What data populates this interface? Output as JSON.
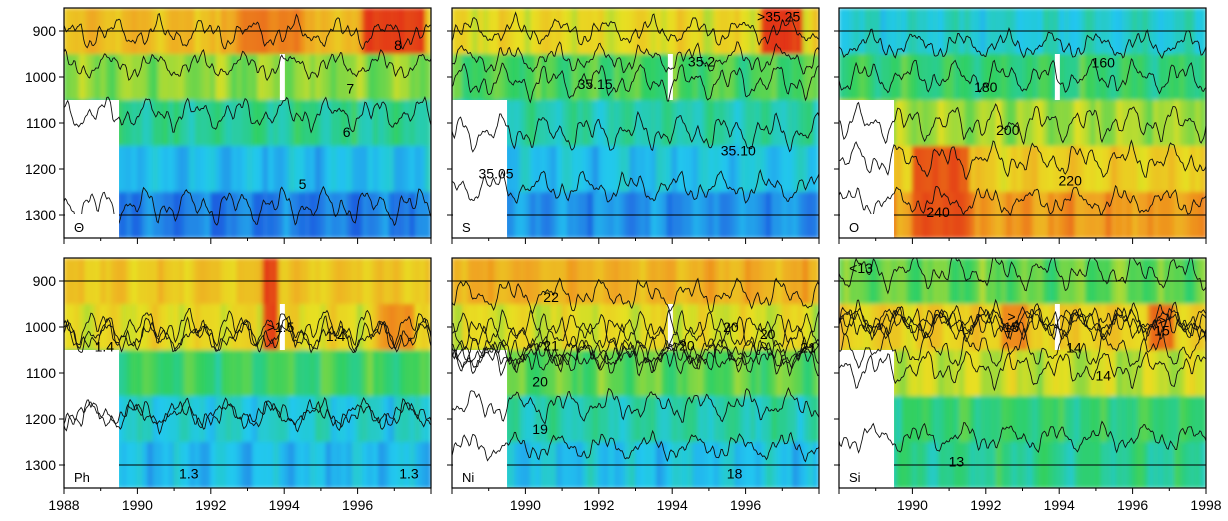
{
  "chart_data": {
    "type": "heatmap",
    "y_axis": {
      "ticks": [
        900,
        1000,
        1100,
        1200,
        1300
      ],
      "ylim": [
        1350,
        850
      ],
      "reversed": true,
      "labeled_columns": [
        0
      ]
    },
    "x_axis": {
      "xlim": [
        1988,
        1998
      ],
      "ticks_col0": [
        "1988",
        "1990",
        "1992",
        "1994",
        "1996"
      ],
      "ticks_col1": [
        "1990",
        "1992",
        "1994",
        "1996"
      ],
      "ticks_col2": [
        "1990",
        "1992",
        "1994",
        "1996",
        "1998"
      ],
      "labeled_row": 1
    },
    "reference_lines_y": [
      900,
      1300
    ],
    "data_gap": {
      "x": 1993.95,
      "ylim": [
        950,
        1050
      ]
    },
    "colormap": [
      "#1f5fe0",
      "#22c8f0",
      "#30d060",
      "#e8e020",
      "#f0a020",
      "#e02010"
    ],
    "panels": [
      {
        "tag": "Θ",
        "row": 0,
        "col": 0,
        "data_start_below": 1050,
        "data_start_x": 1989.5,
        "bands": [
          {
            "y": [
              850,
              950
            ],
            "level": 0.72
          },
          {
            "y": [
              950,
              1050
            ],
            "level": 0.5
          },
          {
            "y": [
              1050,
              1150
            ],
            "level": 0.33
          },
          {
            "y": [
              1150,
              1250
            ],
            "level": 0.18
          },
          {
            "y": [
              1250,
              1350
            ],
            "level": 0.06
          }
        ],
        "hot_spots": [
          {
            "x": [
              1992.7,
              1994.6
            ],
            "y": [
              850,
              950
            ],
            "level": 0.85
          },
          {
            "x": [
              1996.2,
              1997.8
            ],
            "y": [
              850,
              950
            ],
            "level": 0.95
          }
        ],
        "contours": [
          {
            "label": "8",
            "base": 905,
            "label_at": [
              1997.1,
              930
            ]
          },
          {
            "label": "7",
            "base": 975,
            "label_at": [
              1995.8,
              1025
            ]
          },
          {
            "label": "6",
            "base": 1080,
            "label_at": [
              1995.7,
              1120
            ]
          },
          {
            "label": "5",
            "base": 1280,
            "label_at": [
              1994.5,
              1233
            ]
          }
        ]
      },
      {
        "tag": "S",
        "row": 0,
        "col": 1,
        "data_start_below": 1050,
        "data_start_x": 1989.5,
        "bands": [
          {
            "y": [
              850,
              950
            ],
            "level": 0.62
          },
          {
            "y": [
              950,
              1050
            ],
            "level": 0.42
          },
          {
            "y": [
              1050,
              1150
            ],
            "level": 0.3
          },
          {
            "y": [
              1150,
              1250
            ],
            "level": 0.2
          },
          {
            "y": [
              1250,
              1350
            ],
            "level": 0.1
          }
        ],
        "hot_spots": [
          {
            "x": [
              1996.4,
              1997.6
            ],
            "y": [
              850,
              950
            ],
            "level": 0.95
          }
        ],
        "contours": [
          {
            "label": ">35.25",
            "base": 900,
            "label_at": [
              1996.9,
              868
            ]
          },
          {
            "label": "35.2",
            "base": 960,
            "label_at": [
              1994.8,
              966
            ]
          },
          {
            "label": "35.15",
            "base": 1010,
            "label_at": [
              1991.9,
              1015
            ]
          },
          {
            "label": "35.10",
            "base": 1120,
            "label_at": [
              1995.8,
              1160
            ]
          },
          {
            "label": "35.05",
            "base": 1240,
            "label_at": [
              1989.2,
              1210
            ]
          }
        ]
      },
      {
        "tag": "O",
        "row": 0,
        "col": 2,
        "data_start_below": 1050,
        "data_start_x": 1989.5,
        "bands": [
          {
            "y": [
              850,
              950
            ],
            "level": 0.25
          },
          {
            "y": [
              950,
              1050
            ],
            "level": 0.38
          },
          {
            "y": [
              1050,
              1150
            ],
            "level": 0.52
          },
          {
            "y": [
              1150,
              1250
            ],
            "level": 0.66
          },
          {
            "y": [
              1250,
              1350
            ],
            "level": 0.8
          }
        ],
        "hot_spots": [
          {
            "x": [
              1990.0,
              1991.6
            ],
            "y": [
              1150,
              1350
            ],
            "level": 0.92
          }
        ],
        "contours": [
          {
            "label": "160",
            "base": 930,
            "label_at": [
              1995.2,
              968
            ]
          },
          {
            "label": "180",
            "base": 1000,
            "label_at": [
              1992.0,
              1022
            ]
          },
          {
            "label": "200",
            "base": 1100,
            "label_at": [
              1992.6,
              1115
            ]
          },
          {
            "label": "220",
            "base": 1180,
            "label_at": [
              1994.3,
              1225
            ]
          },
          {
            "label": "240",
            "base": 1270,
            "label_at": [
              1990.7,
              1293
            ]
          }
        ]
      },
      {
        "tag": "Ph",
        "row": 1,
        "col": 0,
        "data_start_below": 1050,
        "data_start_x": 1989.5,
        "bands": [
          {
            "y": [
              850,
              950
            ],
            "level": 0.68
          },
          {
            "y": [
              950,
              1050
            ],
            "level": 0.62
          },
          {
            "y": [
              1050,
              1150
            ],
            "level": 0.4
          },
          {
            "y": [
              1150,
              1250
            ],
            "level": 0.24
          },
          {
            "y": [
              1250,
              1350
            ],
            "level": 0.18
          }
        ],
        "hot_spots": [
          {
            "x": [
              1993.4,
              1993.9
            ],
            "y": [
              850,
              1050
            ],
            "level": 0.95
          },
          {
            "x": [
              1996.6,
              1997.5
            ],
            "y": [
              950,
              1050
            ],
            "level": 0.82
          }
        ],
        "contours": [
          {
            "label": "1.4",
            "base": 1020,
            "label_at": [
              1989.1,
              1042
            ]
          },
          {
            "label": "1.4",
            "base": 1020,
            "label_at": [
              1995.4,
              1020
            ]
          },
          {
            "label": ">1.5",
            "base": 1000,
            "label_at": [
              1993.9,
              1000
            ]
          },
          {
            "label": "1.3",
            "base": 1190,
            "label_at": [
              1991.4,
              1318
            ]
          },
          {
            "label": "1.3",
            "base": 1190,
            "label_at": [
              1997.4,
              1318
            ]
          }
        ]
      },
      {
        "tag": "Ni",
        "row": 1,
        "col": 1,
        "data_start_below": 1050,
        "data_start_x": 1989.5,
        "bands": [
          {
            "y": [
              850,
              950
            ],
            "level": 0.75
          },
          {
            "y": [
              950,
              1050
            ],
            "level": 0.6
          },
          {
            "y": [
              1050,
              1150
            ],
            "level": 0.44
          },
          {
            "y": [
              1150,
              1250
            ],
            "level": 0.3
          },
          {
            "y": [
              1250,
              1350
            ],
            "level": 0.2
          }
        ],
        "hot_spots": [],
        "contours": [
          {
            "label": "22",
            "base": 930,
            "label_at": [
              1990.7,
              935
            ]
          },
          {
            "label": "21",
            "base": 1010,
            "label_at": [
              1990.7,
              1040
            ]
          },
          {
            "label": "20",
            "base": 1060,
            "label_at": [
              1994.4,
              1040
            ]
          },
          {
            "label": "20",
            "base": 1060,
            "label_at": [
              1995.6,
              1000
            ]
          },
          {
            "label": "20",
            "base": 1060,
            "label_at": [
              1996.6,
              1015
            ]
          },
          {
            "label": "21",
            "base": 1010,
            "label_at": [
              1997.7,
              1045
            ]
          },
          {
            "label": "20",
            "base": 1060,
            "label_at": [
              1990.4,
              1118
            ]
          },
          {
            "label": "19",
            "base": 1170,
            "label_at": [
              1990.4,
              1222
            ]
          },
          {
            "label": "18",
            "base": 1260,
            "label_at": [
              1995.7,
              1318
            ]
          }
        ]
      },
      {
        "tag": "Si",
        "row": 1,
        "col": 2,
        "data_start_below": 1050,
        "data_start_x": 1989.5,
        "bands": [
          {
            "y": [
              850,
              950
            ],
            "level": 0.45
          },
          {
            "y": [
              950,
              1050
            ],
            "level": 0.66
          },
          {
            "y": [
              1050,
              1150
            ],
            "level": 0.56
          },
          {
            "y": [
              1150,
              1250
            ],
            "level": 0.38
          },
          {
            "y": [
              1250,
              1350
            ],
            "level": 0.34
          }
        ],
        "hot_spots": [
          {
            "x": [
              1992.4,
              1993.2
            ],
            "y": [
              950,
              1050
            ],
            "level": 0.85
          },
          {
            "x": [
              1996.5,
              1997.2
            ],
            "y": [
              950,
              1050
            ],
            "level": 0.88
          }
        ],
        "contours": [
          {
            "label": "<13",
            "base": 880,
            "label_at": [
              1988.6,
              872
            ]
          },
          {
            "label": ">",
            "base": 990,
            "label_at": [
              1992.7,
              977
            ]
          },
          {
            "label": "15",
            "base": 990,
            "label_at": [
              1992.7,
              1000
            ]
          },
          {
            "label": ">",
            "base": 990,
            "label_at": [
              1996.8,
              985
            ]
          },
          {
            "label": "15",
            "base": 990,
            "label_at": [
              1996.8,
              1008
            ]
          },
          {
            "label": "14",
            "base": 1050,
            "label_at": [
              1994.4,
              1045
            ]
          },
          {
            "label": "14",
            "base": 1090,
            "label_at": [
              1995.2,
              1105
            ]
          },
          {
            "label": "13",
            "base": 1240,
            "label_at": [
              1991.2,
              1292
            ]
          }
        ]
      }
    ]
  }
}
